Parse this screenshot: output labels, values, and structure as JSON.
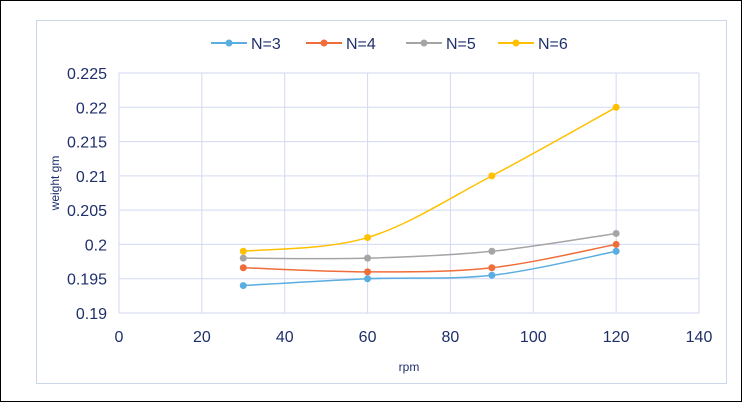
{
  "chart_data": {
    "type": "line",
    "title": "",
    "xlabel": "rpm",
    "ylabel": "weight gm",
    "xlim": [
      0,
      140
    ],
    "ylim": [
      0.19,
      0.225
    ],
    "x_ticks": [
      "0",
      "20",
      "40",
      "60",
      "80",
      "100",
      "120",
      "140"
    ],
    "y_ticks": [
      "0.19",
      "0.195",
      "0.2",
      "0.205",
      "0.21",
      "0.215",
      "0.22",
      "0.225"
    ],
    "grid": true,
    "legend_position": "top",
    "series": [
      {
        "name": "N=3",
        "color": "#5aade0",
        "x": [
          30,
          60,
          90,
          120
        ],
        "y": [
          0.194,
          0.195,
          0.1955,
          0.199
        ]
      },
      {
        "name": "N=4",
        "color": "#ef6d3a",
        "x": [
          30,
          60,
          90,
          120
        ],
        "y": [
          0.1966,
          0.196,
          0.1966,
          0.2
        ]
      },
      {
        "name": "N=5",
        "color": "#a5a5a5",
        "x": [
          30,
          60,
          90,
          120
        ],
        "y": [
          0.198,
          0.198,
          0.199,
          0.2016
        ]
      },
      {
        "name": "N=6",
        "color": "#ffc000",
        "x": [
          30,
          60,
          90,
          120
        ],
        "y": [
          0.199,
          0.201,
          0.21,
          0.22
        ]
      }
    ]
  }
}
